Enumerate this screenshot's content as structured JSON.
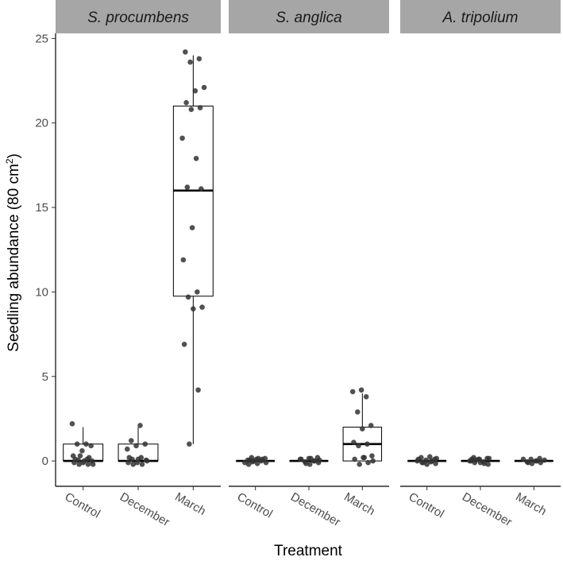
{
  "chart_data": {
    "type": "boxplot",
    "ylabel": "Seedling abundance (80 cm²)",
    "ylabel_parts": {
      "main": "Seedling abundance (80 cm",
      "sup": "2",
      "close": ")"
    },
    "xlabel": "Treatment",
    "ylim": [
      -1.5,
      25.3
    ],
    "y_ticks": [
      "0",
      "5",
      "10",
      "15",
      "20",
      "25"
    ],
    "categories": [
      "Control",
      "December",
      "March"
    ],
    "grid": false,
    "colors": {
      "strip_bg": "#a6a6a6",
      "point": "#333333",
      "axis": "#000000"
    },
    "panels": [
      {
        "name": "S. procumbens",
        "boxes": [
          {
            "category": "Control",
            "min": 0,
            "q1": 0,
            "median": 0,
            "q3": 1,
            "max": 2,
            "points": [
              2.2,
              1.0,
              1.0,
              0.9,
              0.6,
              0.3,
              0.1,
              0.05,
              0.0,
              -0.1,
              -0.1,
              -0.2,
              -0.2,
              -0.2,
              0.0,
              0.1,
              0.2,
              0.3
            ]
          },
          {
            "category": "December",
            "min": 0,
            "q1": 0,
            "median": 0,
            "q3": 1,
            "max": 2,
            "points": [
              2.1,
              1.2,
              1.0,
              0.9,
              0.7,
              0.2,
              0.1,
              0.05,
              -0.1,
              -0.1,
              -0.2,
              -0.2,
              0.0,
              0.1,
              0.2
            ]
          },
          {
            "category": "March",
            "min": 1,
            "q1": 9.75,
            "median": 16,
            "q3": 21,
            "max": 24,
            "points": [
              24.2,
              23.8,
              23.6,
              22.1,
              21.9,
              21.2,
              20.9,
              20.8,
              19.1,
              17.9,
              16.2,
              16.1,
              13.8,
              11.9,
              10.0,
              9.7,
              9.1,
              9.0,
              6.9,
              4.2,
              1.0
            ]
          }
        ]
      },
      {
        "name": "S. anglica",
        "boxes": [
          {
            "category": "Control",
            "min": 0,
            "q1": 0,
            "median": 0,
            "q3": 0,
            "max": 0,
            "points": [
              0.2,
              0.15,
              0.1,
              0.05,
              0.0,
              -0.05,
              -0.1,
              -0.15,
              -0.2,
              0.1,
              0.0,
              -0.1,
              0.15,
              0.05
            ]
          },
          {
            "category": "December",
            "min": 0,
            "q1": 0,
            "median": 0,
            "q3": 0,
            "max": 0,
            "points": [
              0.2,
              0.15,
              0.1,
              0.0,
              -0.05,
              -0.1,
              -0.2,
              0.1,
              0.0,
              -0.15,
              0.05,
              0.15
            ]
          },
          {
            "category": "March",
            "min": 0,
            "q1": 0,
            "median": 1,
            "q3": 2,
            "max": 4,
            "points": [
              4.2,
              4.1,
              3.8,
              2.9,
              2.1,
              1.9,
              1.1,
              1.0,
              0.9,
              0.3,
              0.2,
              0.1,
              -0.1,
              -0.2,
              0.0,
              0.2
            ]
          }
        ]
      },
      {
        "name": "A. tripolium",
        "boxes": [
          {
            "category": "Control",
            "min": 0,
            "q1": 0,
            "median": 0,
            "q3": 0,
            "max": 0,
            "points": [
              0.25,
              0.2,
              0.1,
              0.05,
              0.0,
              -0.05,
              -0.1,
              -0.15,
              -0.2,
              0.1,
              0.0,
              -0.1,
              0.15
            ]
          },
          {
            "category": "December",
            "min": 0,
            "q1": 0,
            "median": 0,
            "q3": 0,
            "max": 0,
            "points": [
              0.2,
              0.15,
              0.1,
              0.0,
              -0.05,
              -0.1,
              -0.2,
              0.1,
              0.0,
              -0.15,
              0.05,
              0.15,
              -0.1,
              0.1
            ]
          },
          {
            "category": "March",
            "min": 0,
            "q1": 0,
            "median": 0,
            "q3": 0,
            "max": 0,
            "points": [
              0.15,
              0.1,
              0.05,
              0.0,
              -0.05,
              -0.1,
              -0.15,
              0.1,
              0.0,
              -0.1
            ]
          }
        ]
      }
    ]
  }
}
